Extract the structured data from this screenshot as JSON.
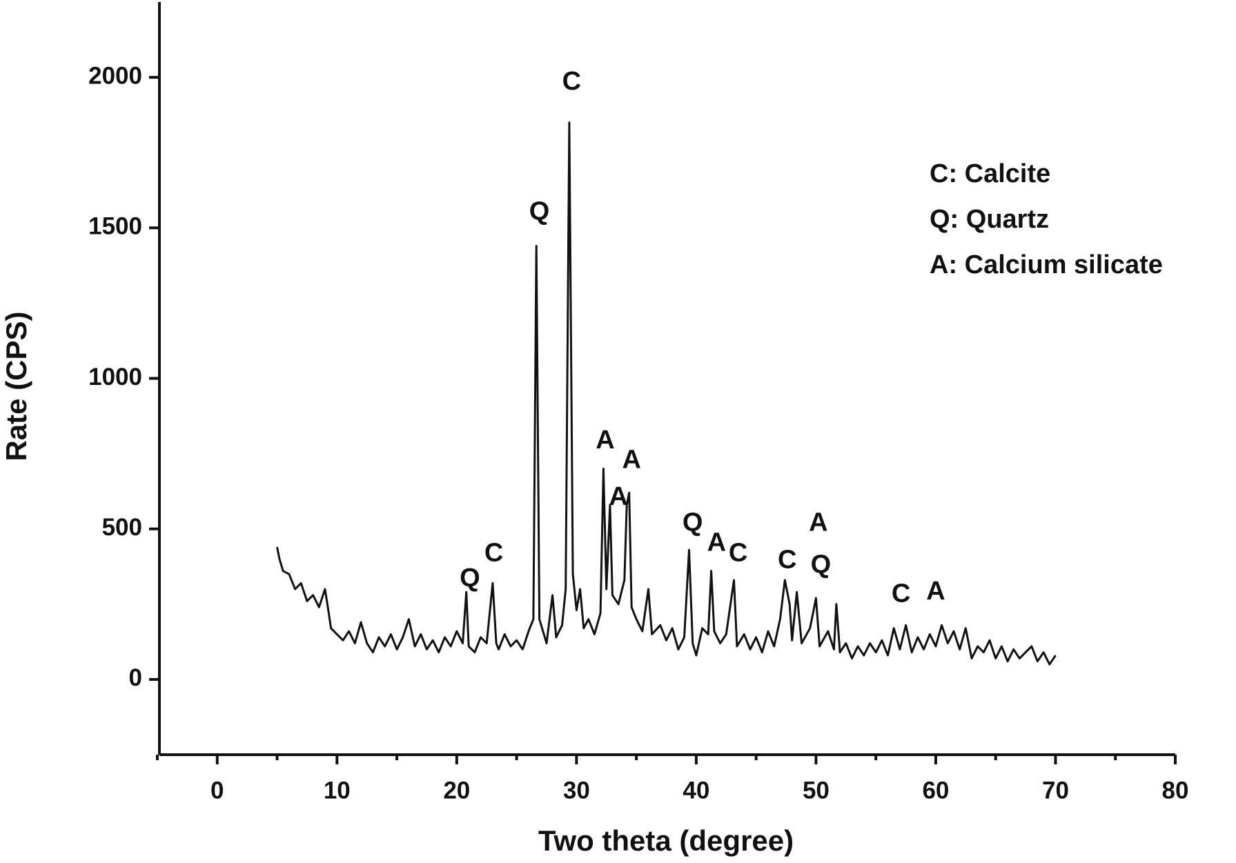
{
  "chart_data": {
    "type": "line",
    "x_label": "Two theta (degree)",
    "y_label": "Rate (CPS)",
    "xlim": [
      -5,
      80
    ],
    "ylim": [
      -250,
      2250
    ],
    "xticks": [
      0,
      10,
      20,
      30,
      40,
      50,
      60,
      70,
      80
    ],
    "xminorticks": [
      -5,
      5,
      15,
      25,
      35,
      45,
      55,
      65,
      75
    ],
    "yticks": [
      0,
      500,
      1000,
      1500,
      2000
    ],
    "color": "#111111",
    "x": [
      5.0,
      5.2,
      5.5,
      6.0,
      6.5,
      7.0,
      7.5,
      8.0,
      8.5,
      9.0,
      9.2,
      9.5,
      10.0,
      10.5,
      11.0,
      11.5,
      12.0,
      12.5,
      13.0,
      13.5,
      14.0,
      14.5,
      15.0,
      15.5,
      16.0,
      16.5,
      17.0,
      17.5,
      18.0,
      18.5,
      19.0,
      19.5,
      20.0,
      20.5,
      20.8,
      21.0,
      21.5,
      22.0,
      22.5,
      23.0,
      23.3,
      23.5,
      24.0,
      24.5,
      25.0,
      25.5,
      26.0,
      26.4,
      26.65,
      26.9,
      27.5,
      28.0,
      28.3,
      28.8,
      29.1,
      29.4,
      29.7,
      30.0,
      30.3,
      30.6,
      31.0,
      31.5,
      32.0,
      32.25,
      32.5,
      32.8,
      33.0,
      33.5,
      34.0,
      34.2,
      34.4,
      34.6,
      35.0,
      35.5,
      36.0,
      36.3,
      37.0,
      37.5,
      38.0,
      38.5,
      39.0,
      39.4,
      39.7,
      40.0,
      40.5,
      41.0,
      41.25,
      41.5,
      42.0,
      42.5,
      43.15,
      43.4,
      44.0,
      44.5,
      45.0,
      45.5,
      46.0,
      46.5,
      47.0,
      47.4,
      47.8,
      48.0,
      48.4,
      48.8,
      49.5,
      50.0,
      50.3,
      51.0,
      51.5,
      51.7,
      52.0,
      52.5,
      53.0,
      53.5,
      54.0,
      54.5,
      55.0,
      55.5,
      56.0,
      56.5,
      57.0,
      57.5,
      58.0,
      58.5,
      59.0,
      59.5,
      60.0,
      60.5,
      61.0,
      61.5,
      62.0,
      62.5,
      63.0,
      63.5,
      64.0,
      64.5,
      65.0,
      65.5,
      66.0,
      66.5,
      67.0,
      67.5,
      68.0,
      68.5,
      69.0,
      69.5,
      70.0
    ],
    "values": [
      440,
      400,
      360,
      350,
      300,
      320,
      260,
      280,
      240,
      300,
      250,
      170,
      150,
      130,
      160,
      120,
      190,
      120,
      90,
      140,
      110,
      150,
      100,
      140,
      200,
      110,
      150,
      100,
      130,
      90,
      140,
      110,
      160,
      120,
      290,
      110,
      90,
      140,
      120,
      320,
      120,
      100,
      150,
      110,
      130,
      100,
      160,
      200,
      1440,
      200,
      120,
      280,
      140,
      180,
      300,
      1850,
      350,
      230,
      300,
      170,
      200,
      150,
      220,
      700,
      300,
      580,
      280,
      250,
      330,
      580,
      620,
      240,
      200,
      160,
      300,
      150,
      180,
      130,
      170,
      100,
      140,
      430,
      120,
      80,
      170,
      150,
      360,
      160,
      120,
      150,
      330,
      110,
      150,
      100,
      140,
      90,
      160,
      110,
      200,
      330,
      250,
      130,
      290,
      120,
      170,
      270,
      110,
      160,
      100,
      250,
      90,
      120,
      70,
      110,
      80,
      120,
      90,
      130,
      80,
      170,
      100,
      180,
      90,
      140,
      100,
      150,
      110,
      180,
      120,
      160,
      100,
      170,
      70,
      110,
      90,
      130,
      70,
      110,
      60,
      100,
      70,
      90,
      110,
      60,
      90,
      50,
      80
    ],
    "annotations": [
      {
        "text": "Q",
        "x": 21.1,
        "y": 332
      },
      {
        "text": "C",
        "x": 23.1,
        "y": 416
      },
      {
        "text": "Q",
        "x": 26.9,
        "y": 1550
      },
      {
        "text": "C",
        "x": 29.6,
        "y": 1982
      },
      {
        "text": "A",
        "x": 32.4,
        "y": 790
      },
      {
        "text": "A",
        "x": 34.6,
        "y": 725
      },
      {
        "text": "A",
        "x": 33.5,
        "y": 602
      },
      {
        "text": "Q",
        "x": 39.7,
        "y": 516
      },
      {
        "text": "A",
        "x": 41.7,
        "y": 450
      },
      {
        "text": "C",
        "x": 43.5,
        "y": 416
      },
      {
        "text": "C",
        "x": 47.6,
        "y": 393
      },
      {
        "text": "A",
        "x": 50.2,
        "y": 516
      },
      {
        "text": "Q",
        "x": 50.4,
        "y": 377
      },
      {
        "text": "C",
        "x": 57.1,
        "y": 280
      },
      {
        "text": "A",
        "x": 60.0,
        "y": 288
      }
    ],
    "key": [
      "C: Calcite",
      "Q: Quartz",
      "A: Calcium silicate"
    ]
  }
}
